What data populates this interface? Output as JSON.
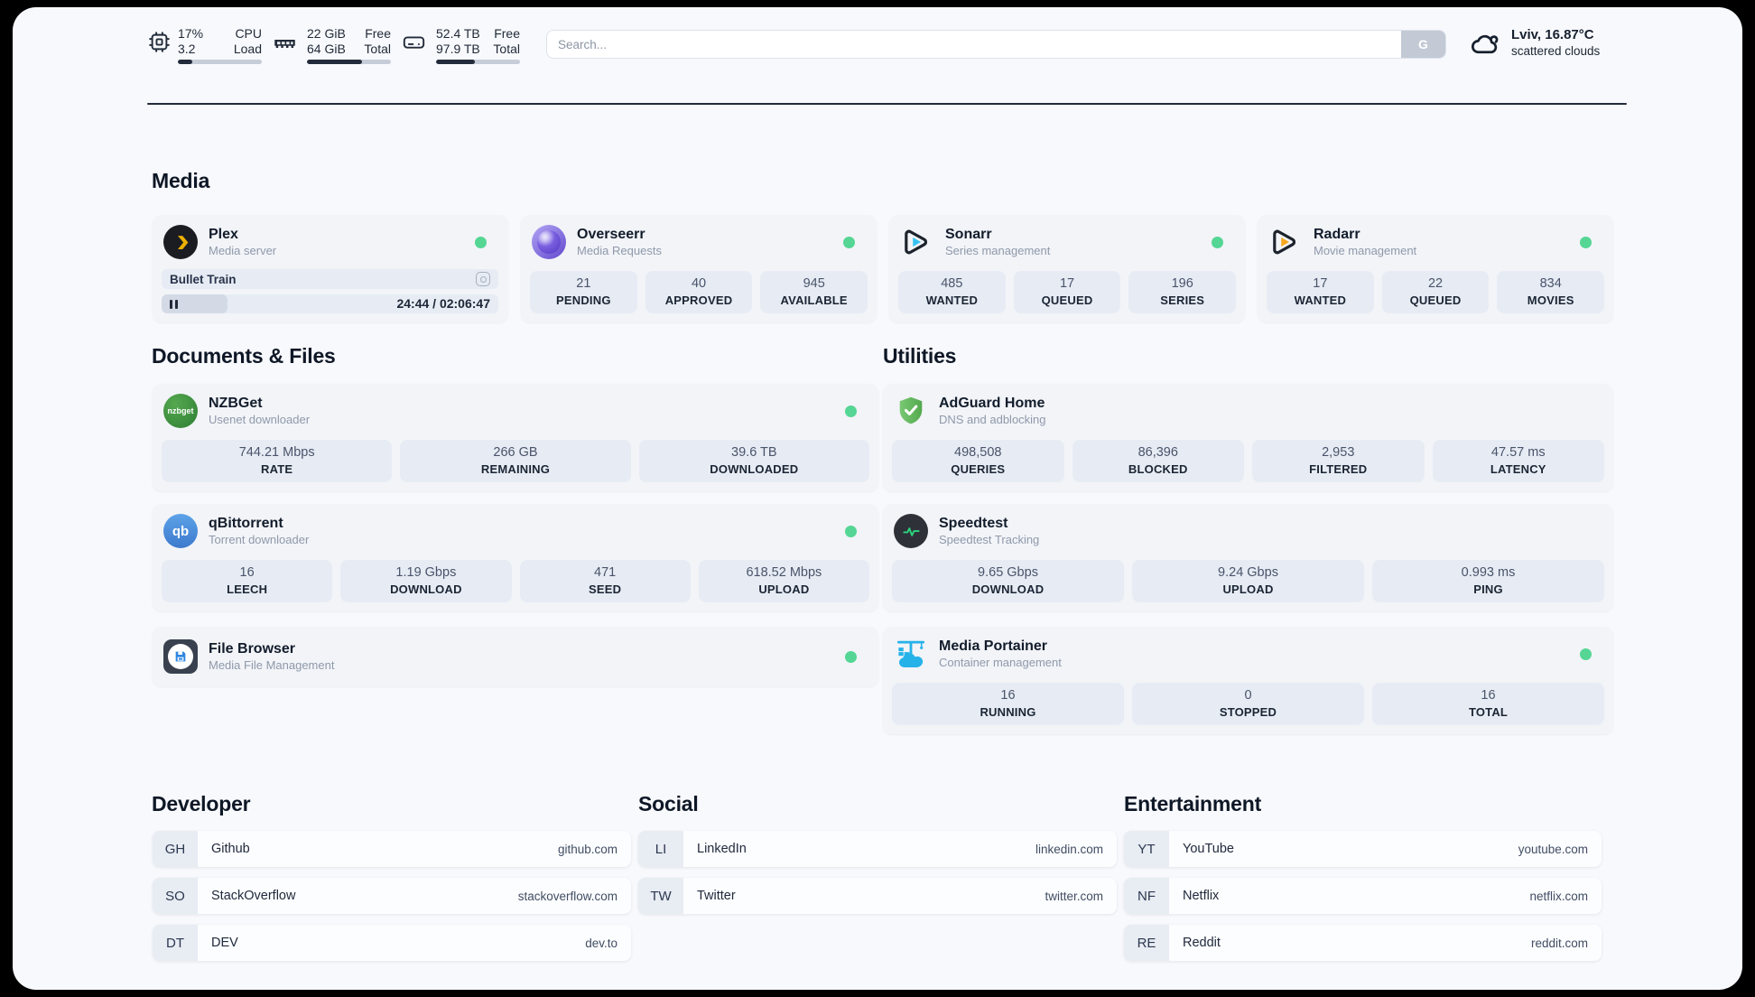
{
  "topbar": {
    "metrics": [
      {
        "name": "cpu",
        "values": [
          "17%",
          "3.2"
        ],
        "labels": [
          "CPU",
          "Load"
        ],
        "progress": 17
      },
      {
        "name": "ram",
        "values": [
          "22 GiB",
          "64 GiB"
        ],
        "labels": [
          "Free",
          "Total"
        ],
        "progress": 66
      },
      {
        "name": "disk",
        "values": [
          "52.4 TB",
          "97.9 TB"
        ],
        "labels": [
          "Free",
          "Total"
        ],
        "progress": 46
      }
    ],
    "search": {
      "placeholder": "Search...",
      "button_label": "G"
    },
    "weather": {
      "title": "Lviv, 16.87°C",
      "subtitle": "scattered clouds"
    }
  },
  "sections": {
    "media": "Media",
    "documents": "Documents & Files",
    "utilities": "Utilities",
    "developer": "Developer",
    "social": "Social",
    "entertainment": "Entertainment"
  },
  "apps": {
    "plex": {
      "title": "Plex",
      "subtitle": "Media server",
      "now_playing": "Bullet Train",
      "time": "24:44 / 02:06:47",
      "progress_percent": 19.5
    },
    "overseerr": {
      "title": "Overseerr",
      "subtitle": "Media Requests",
      "stats": [
        {
          "value": "21",
          "label": "PENDING"
        },
        {
          "value": "40",
          "label": "APPROVED"
        },
        {
          "value": "945",
          "label": "AVAILABLE"
        }
      ]
    },
    "sonarr": {
      "title": "Sonarr",
      "subtitle": "Series management",
      "stats": [
        {
          "value": "485",
          "label": "WANTED"
        },
        {
          "value": "17",
          "label": "QUEUED"
        },
        {
          "value": "196",
          "label": "SERIES"
        }
      ]
    },
    "radarr": {
      "title": "Radarr",
      "subtitle": "Movie management",
      "stats": [
        {
          "value": "17",
          "label": "WANTED"
        },
        {
          "value": "22",
          "label": "QUEUED"
        },
        {
          "value": "834",
          "label": "MOVIES"
        }
      ]
    },
    "nzbget": {
      "title": "NZBGet",
      "subtitle": "Usenet downloader",
      "icon_text": "nzbget",
      "stats": [
        {
          "value": "744.21 Mbps",
          "label": "RATE"
        },
        {
          "value": "266 GB",
          "label": "REMAINING"
        },
        {
          "value": "39.6 TB",
          "label": "DOWNLOADED"
        }
      ]
    },
    "qbittorrent": {
      "title": "qBittorrent",
      "subtitle": "Torrent downloader",
      "icon_text": "qb",
      "stats": [
        {
          "value": "16",
          "label": "LEECH"
        },
        {
          "value": "1.19 Gbps",
          "label": "DOWNLOAD"
        },
        {
          "value": "471",
          "label": "SEED"
        },
        {
          "value": "618.52 Mbps",
          "label": "UPLOAD"
        }
      ]
    },
    "filebrowser": {
      "title": "File Browser",
      "subtitle": "Media File Management"
    },
    "adguard": {
      "title": "AdGuard Home",
      "subtitle": "DNS and adblocking",
      "stats": [
        {
          "value": "498,508",
          "label": "QUERIES"
        },
        {
          "value": "86,396",
          "label": "BLOCKED"
        },
        {
          "value": "2,953",
          "label": "FILTERED"
        },
        {
          "value": "47.57 ms",
          "label": "LATENCY"
        }
      ]
    },
    "speedtest": {
      "title": "Speedtest",
      "subtitle": "Speedtest Tracking",
      "stats": [
        {
          "value": "9.65 Gbps",
          "label": "DOWNLOAD"
        },
        {
          "value": "9.24 Gbps",
          "label": "UPLOAD"
        },
        {
          "value": "0.993 ms",
          "label": "PING"
        }
      ]
    },
    "portainer": {
      "title": "Media Portainer",
      "subtitle": "Container management",
      "stats": [
        {
          "value": "16",
          "label": "RUNNING"
        },
        {
          "value": "0",
          "label": "STOPPED"
        },
        {
          "value": "16",
          "label": "TOTAL"
        }
      ]
    }
  },
  "bookmarks": {
    "developer": [
      {
        "badge": "GH",
        "name": "Github",
        "url": "github.com"
      },
      {
        "badge": "SO",
        "name": "StackOverflow",
        "url": "stackoverflow.com"
      },
      {
        "badge": "DT",
        "name": "DEV",
        "url": "dev.to"
      }
    ],
    "social": [
      {
        "badge": "LI",
        "name": "LinkedIn",
        "url": "linkedin.com"
      },
      {
        "badge": "TW",
        "name": "Twitter",
        "url": "twitter.com"
      }
    ],
    "entertainment": [
      {
        "badge": "YT",
        "name": "YouTube",
        "url": "youtube.com"
      },
      {
        "badge": "NF",
        "name": "Netflix",
        "url": "netflix.com"
      },
      {
        "badge": "RE",
        "name": "Reddit",
        "url": "reddit.com"
      }
    ]
  },
  "colors": {
    "status_online": "#55d694",
    "accent_dark": "#222b3a"
  }
}
